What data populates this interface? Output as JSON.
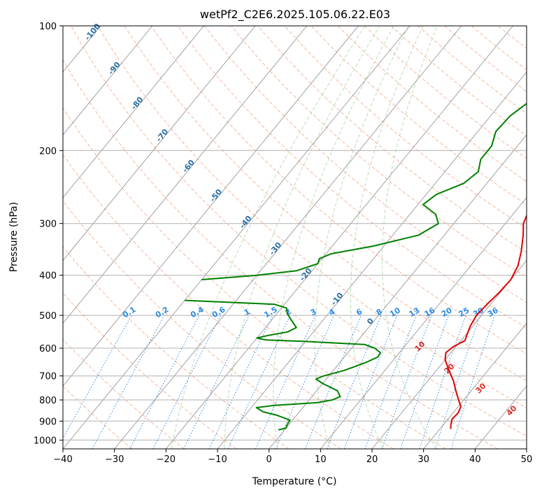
{
  "chart_data": {
    "type": "line",
    "title": "wetPf2_C2E6.2025.105.06.22.E03",
    "xlabel": "Temperature (°C)",
    "ylabel": "Pressure (hPa)",
    "xlim": [
      -40,
      50
    ],
    "ylim": [
      1050,
      100
    ],
    "y_scale": "log",
    "x_ticks": [
      -40,
      -30,
      -20,
      -10,
      0,
      10,
      20,
      30,
      40,
      50
    ],
    "y_ticks": [
      100,
      200,
      300,
      400,
      500,
      600,
      700,
      800,
      900,
      1000
    ],
    "grid": true,
    "colors": {
      "temperature": "#e00000",
      "dewpoint": "#008000",
      "isotherm": "#999999",
      "dry_adiabat": "#f4a582",
      "moist_adiabat": "#a6d5a0",
      "mixing_ratio": "#2b8ce6",
      "label_iso": "#2b6fa6",
      "label_mix": "#2b8ce6",
      "label_adiabat": "#d73027"
    },
    "series": [
      {
        "key": "temperature",
        "points": [
          {
            "p": 940,
            "t": 32.1
          },
          {
            "p": 920,
            "t": 31.5
          },
          {
            "p": 890,
            "t": 30.8
          },
          {
            "p": 860,
            "t": 31.0
          },
          {
            "p": 830,
            "t": 30.5
          },
          {
            "p": 800,
            "t": 29.0
          },
          {
            "p": 760,
            "t": 27.0
          },
          {
            "p": 720,
            "t": 25.0
          },
          {
            "p": 680,
            "t": 22.5
          },
          {
            "p": 640,
            "t": 20.0
          },
          {
            "p": 615,
            "t": 19.0
          },
          {
            "p": 595,
            "t": 19.5
          },
          {
            "p": 575,
            "t": 20.8
          },
          {
            "p": 555,
            "t": 20.2
          },
          {
            "p": 530,
            "t": 19.5
          },
          {
            "p": 500,
            "t": 19.0
          },
          {
            "p": 470,
            "t": 19.3
          },
          {
            "p": 440,
            "t": 19.8
          },
          {
            "p": 410,
            "t": 20.0
          },
          {
            "p": 380,
            "t": 19.2
          },
          {
            "p": 350,
            "t": 17.5
          },
          {
            "p": 320,
            "t": 15.3
          },
          {
            "p": 300,
            "t": 13.5
          },
          {
            "p": 270,
            "t": 12.0
          },
          {
            "p": 245,
            "t": 10.0
          },
          {
            "p": 220,
            "t": 8.5
          },
          {
            "p": 200,
            "t": 7.0
          },
          {
            "p": 180,
            "t": 5.5
          },
          {
            "p": 160,
            "t": 3.5
          },
          {
            "p": 140,
            "t": 2.0
          },
          {
            "p": 130,
            "t": 1.8
          },
          {
            "p": 120,
            "t": 2.2
          },
          {
            "p": 110,
            "t": 3.0
          },
          {
            "p": 100,
            "t": 4.2
          }
        ]
      },
      {
        "key": "dewpoint",
        "points": [
          {
            "p": 945,
            "t": -1.2
          },
          {
            "p": 935,
            "t": 0.0
          },
          {
            "p": 920,
            "t": -0.3
          },
          {
            "p": 895,
            "t": -0.5
          },
          {
            "p": 870,
            "t": -4.0
          },
          {
            "p": 855,
            "t": -7.0
          },
          {
            "p": 835,
            "t": -9.0
          },
          {
            "p": 825,
            "t": -6.0
          },
          {
            "p": 812,
            "t": 2.0
          },
          {
            "p": 800,
            "t": 4.5
          },
          {
            "p": 785,
            "t": 5.5
          },
          {
            "p": 760,
            "t": 4.0
          },
          {
            "p": 730,
            "t": 0.0
          },
          {
            "p": 712,
            "t": -2.0
          },
          {
            "p": 700,
            "t": -1.0
          },
          {
            "p": 680,
            "t": 2.0
          },
          {
            "p": 650,
            "t": 5.0
          },
          {
            "p": 630,
            "t": 6.5
          },
          {
            "p": 615,
            "t": 6.3
          },
          {
            "p": 600,
            "t": 4.5
          },
          {
            "p": 588,
            "t": 2.0
          },
          {
            "p": 578,
            "t": -10.0
          },
          {
            "p": 573,
            "t": -18.0
          },
          {
            "p": 567,
            "t": -20.0
          },
          {
            "p": 560,
            "t": -18.5
          },
          {
            "p": 548,
            "t": -15.0
          },
          {
            "p": 535,
            "t": -14.0
          },
          {
            "p": 515,
            "t": -16.0
          },
          {
            "p": 495,
            "t": -18.0
          },
          {
            "p": 480,
            "t": -19.0
          },
          {
            "p": 470,
            "t": -22.0
          },
          {
            "p": 460,
            "t": -40.0
          }
        ]
      },
      {
        "key": "dewpoint",
        "points": [
          {
            "p": 410,
            "t": -40.0
          },
          {
            "p": 400,
            "t": -30.0
          },
          {
            "p": 390,
            "t": -23.0
          },
          {
            "p": 375,
            "t": -20.0
          },
          {
            "p": 365,
            "t": -20.5
          },
          {
            "p": 355,
            "t": -19.0
          },
          {
            "p": 340,
            "t": -12.0
          },
          {
            "p": 320,
            "t": -5.0
          },
          {
            "p": 300,
            "t": -3.0
          },
          {
            "p": 285,
            "t": -5.0
          },
          {
            "p": 270,
            "t": -9.0
          },
          {
            "p": 255,
            "t": -8.0
          },
          {
            "p": 240,
            "t": -4.5
          },
          {
            "p": 225,
            "t": -3.5
          },
          {
            "p": 210,
            "t": -5.0
          },
          {
            "p": 195,
            "t": -5.0
          },
          {
            "p": 180,
            "t": -6.5
          },
          {
            "p": 165,
            "t": -6.2
          },
          {
            "p": 150,
            "t": -4.5
          },
          {
            "p": 140,
            "t": -3.0
          },
          {
            "p": 130,
            "t": -3.5
          },
          {
            "p": 120,
            "t": -3.5
          },
          {
            "p": 110,
            "t": -2.5
          },
          {
            "p": 100,
            "t": 0.0
          }
        ]
      }
    ],
    "isotherm_labels": [
      "-100",
      "-90",
      "-80",
      "-70",
      "-60",
      "-50",
      "-40",
      "-30",
      "-20",
      "-10",
      "0"
    ],
    "mixing_ratio_labels": [
      "0.1",
      "0.2",
      "0.4",
      "0.6",
      "1",
      "1.5",
      "2",
      "3",
      "4",
      "6",
      "8",
      "10",
      "13",
      "16",
      "20",
      "25",
      "30",
      "36"
    ],
    "adiabat_labels": [
      "10",
      "20",
      "30",
      "40"
    ]
  }
}
